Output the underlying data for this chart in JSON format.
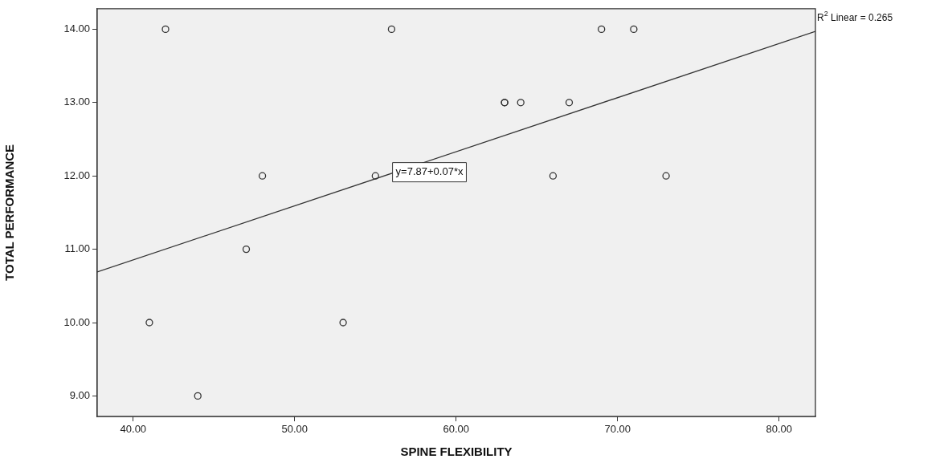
{
  "chart_data": {
    "type": "scatter",
    "xlabel": "SPINE FLEXIBILITY",
    "ylabel": "TOTAL PERFORMANCE",
    "xlim": [
      37.77,
      82.25
    ],
    "ylim": [
      8.72,
      14.28
    ],
    "xticks": [
      {
        "value": 40,
        "label": "40.00"
      },
      {
        "value": 50,
        "label": "50.00"
      },
      {
        "value": 60,
        "label": "60.00"
      },
      {
        "value": 70,
        "label": "70.00"
      },
      {
        "value": 80,
        "label": "80.00"
      }
    ],
    "yticks": [
      {
        "value": 9,
        "label": "9.00"
      },
      {
        "value": 10,
        "label": "10.00"
      },
      {
        "value": 11,
        "label": "11.00"
      },
      {
        "value": 12,
        "label": "12.00"
      },
      {
        "value": 13,
        "label": "13.00"
      },
      {
        "value": 14,
        "label": "14.00"
      }
    ],
    "series": [
      {
        "marker": "circle",
        "color": "#333333",
        "x": [
          42,
          56,
          41,
          44,
          47,
          48,
          53,
          55,
          63,
          63,
          64,
          67,
          69,
          71,
          66,
          73
        ],
        "values": [
          14,
          14,
          10,
          9,
          11,
          12,
          10,
          12,
          13,
          13,
          13,
          13,
          14,
          14,
          12,
          12
        ]
      },
      {
        "type": "line",
        "marker": "none",
        "color": "#333333",
        "x": [
          37.77,
          82.25
        ],
        "values": [
          10.69,
          13.97
        ]
      }
    ],
    "annotations": [
      {
        "text": "y=7.87+0.07*x",
        "x": 56.06,
        "y": 12.05
      },
      "R$^{2}$ Linear = 0.265"
    ]
  }
}
